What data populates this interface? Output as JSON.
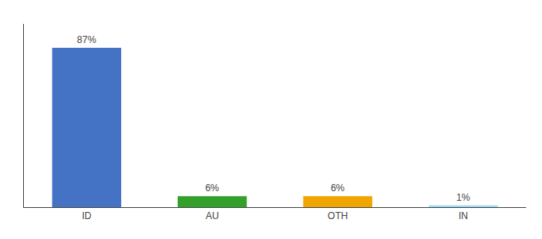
{
  "chart_data": {
    "type": "bar",
    "categories": [
      "ID",
      "AU",
      "OTH",
      "IN"
    ],
    "values": [
      87,
      6,
      6,
      1
    ],
    "value_labels": [
      "87%",
      "6%",
      "6%",
      "1%"
    ],
    "colors": [
      "#4472c4",
      "#33a02c",
      "#f0a500",
      "#a0d8ef"
    ],
    "ylim": [
      0,
      100
    ],
    "grid": false,
    "data_labels": true,
    "tick_labels": "x"
  }
}
